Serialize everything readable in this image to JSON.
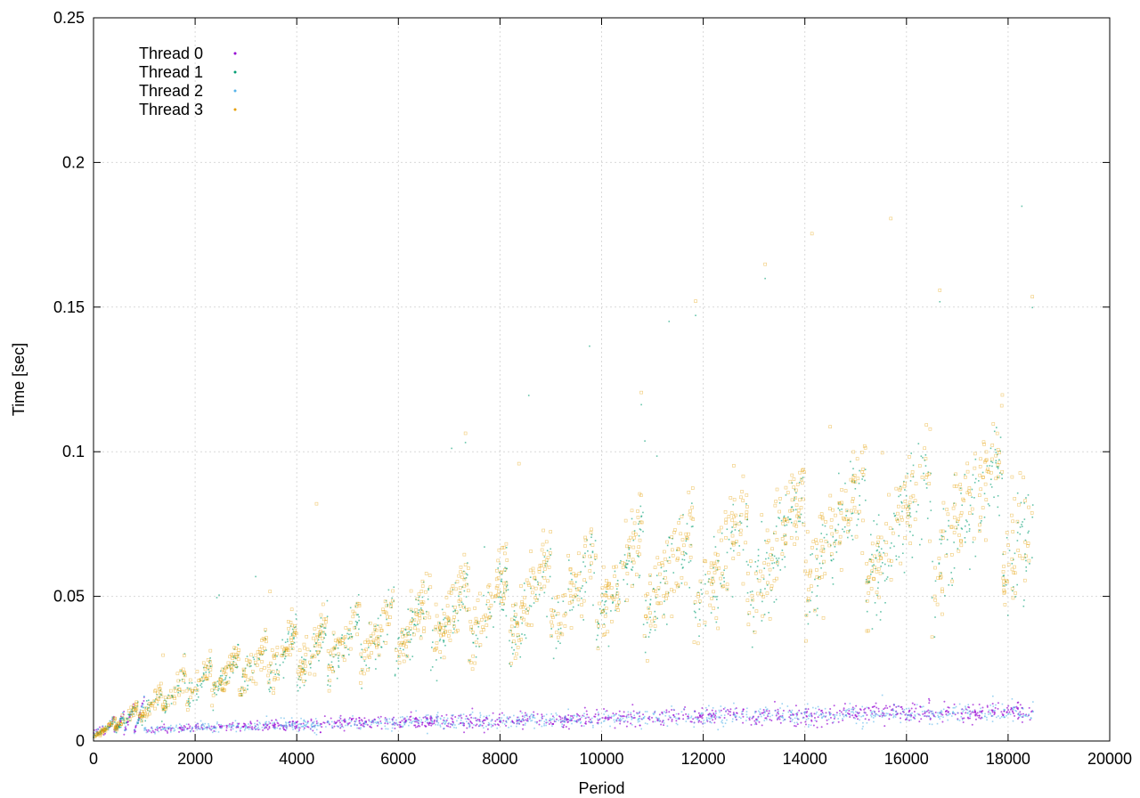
{
  "chart_data": {
    "type": "scatter",
    "xlabel": "Period",
    "ylabel": "Time [sec]",
    "xlim": [
      0,
      20000
    ],
    "ylim": [
      0,
      0.25
    ],
    "x_ticks": [
      0,
      2000,
      4000,
      6000,
      8000,
      10000,
      12000,
      14000,
      16000,
      18000,
      20000
    ],
    "y_ticks": [
      0,
      0.05,
      0.1,
      0.15,
      0.2,
      0.25
    ],
    "x_tick_labels": [
      "0",
      "2000",
      "4000",
      "6000",
      "8000",
      "10000",
      "12000",
      "14000",
      "16000",
      "18000",
      "20000"
    ],
    "y_tick_labels": [
      "0",
      "0.05",
      "0.1",
      "0.15",
      "0.2",
      "0.25"
    ],
    "grid": true,
    "legend_position": "top-left",
    "x_max_data": 18500,
    "series": [
      {
        "name": "Thread 0",
        "color": "#9400d3",
        "marker": "dot",
        "trend": [
          [
            0,
            0.002
          ],
          [
            1000,
            0.004
          ],
          [
            2000,
            0.0045
          ],
          [
            4000,
            0.0055
          ],
          [
            6000,
            0.0065
          ],
          [
            8000,
            0.0072
          ],
          [
            10000,
            0.0078
          ],
          [
            12000,
            0.0085
          ],
          [
            14000,
            0.009
          ],
          [
            16000,
            0.0095
          ],
          [
            18500,
            0.0098
          ]
        ]
      },
      {
        "name": "Thread 1",
        "color": "#009e73",
        "marker": "plus",
        "trend": [
          [
            0,
            0.002
          ],
          [
            2000,
            0.02
          ],
          [
            4000,
            0.03
          ],
          [
            6000,
            0.038
          ],
          [
            8000,
            0.045
          ],
          [
            10000,
            0.052
          ],
          [
            12000,
            0.06
          ],
          [
            14000,
            0.068
          ],
          [
            16000,
            0.075
          ],
          [
            18500,
            0.08
          ]
        ]
      },
      {
        "name": "Thread 2",
        "color": "#56b4e9",
        "marker": "cross",
        "trend": [
          [
            0,
            0.002
          ],
          [
            1000,
            0.004
          ],
          [
            2000,
            0.0045
          ],
          [
            4000,
            0.0055
          ],
          [
            6000,
            0.0065
          ],
          [
            8000,
            0.0072
          ],
          [
            10000,
            0.0078
          ],
          [
            12000,
            0.0085
          ],
          [
            14000,
            0.009
          ],
          [
            16000,
            0.0095
          ],
          [
            18500,
            0.0098
          ]
        ]
      },
      {
        "name": "Thread 3",
        "color": "#e69f00",
        "marker": "square",
        "trend": [
          [
            0,
            0.002
          ],
          [
            2000,
            0.02
          ],
          [
            4000,
            0.031
          ],
          [
            6000,
            0.038
          ],
          [
            8000,
            0.047
          ],
          [
            10000,
            0.054
          ],
          [
            12000,
            0.062
          ],
          [
            14000,
            0.07
          ],
          [
            16000,
            0.077
          ],
          [
            18500,
            0.082
          ]
        ]
      }
    ]
  }
}
